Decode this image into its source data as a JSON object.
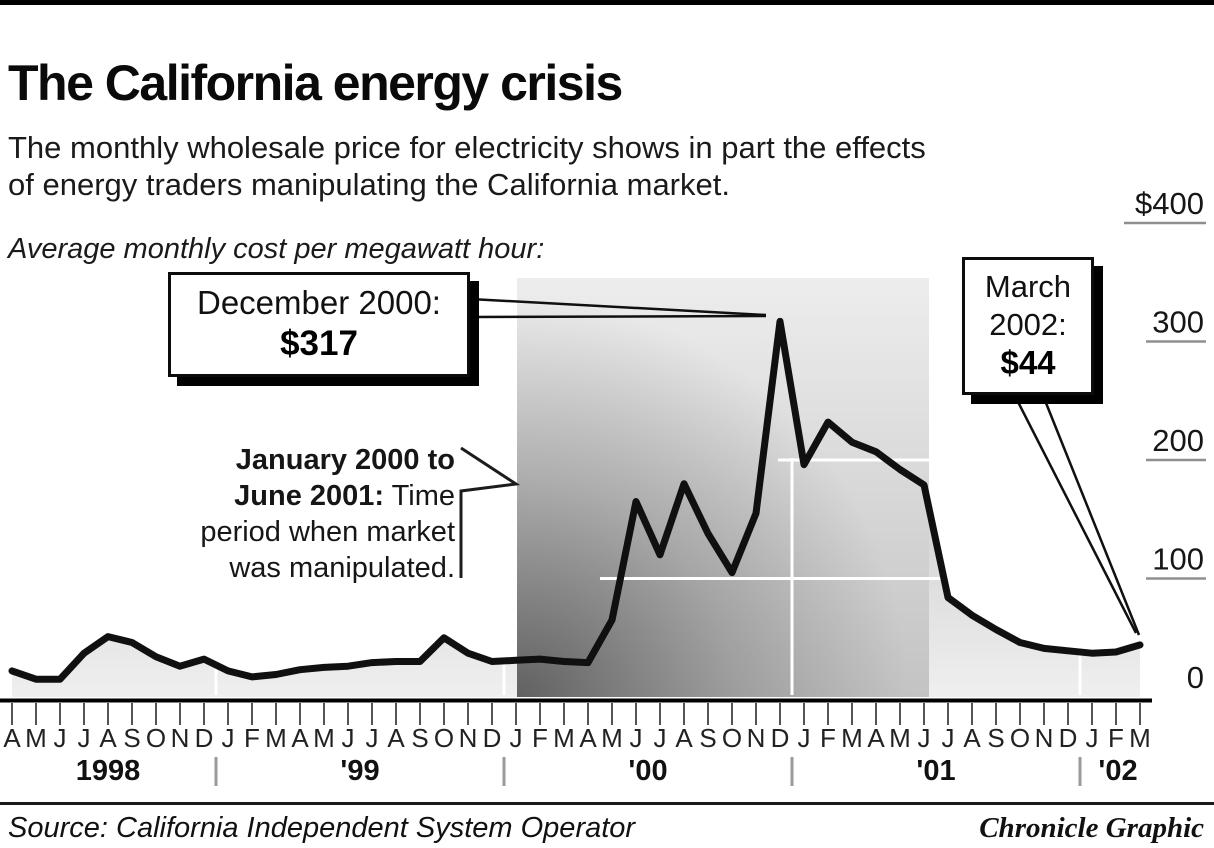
{
  "page": {
    "title": "The California energy crisis",
    "subtitle": "The monthly wholesale price for electricity shows in part the effects\nof energy traders manipulating the California market.",
    "axis_note": "Average monthly cost per megawatt hour:",
    "source": "Source: California Independent System Operator",
    "credit": "Chronicle Graphic"
  },
  "chart_data": {
    "type": "line",
    "title": "Average monthly cost per megawatt hour",
    "unit": "dollars per megawatt hour",
    "x_start": "April 1998",
    "x_end": "March 2002",
    "x_months": [
      "A",
      "M",
      "J",
      "J",
      "A",
      "S",
      "O",
      "N",
      "D",
      "J",
      "F",
      "M",
      "A",
      "M",
      "J",
      "J",
      "A",
      "S",
      "O",
      "N",
      "D",
      "J",
      "F",
      "M",
      "A",
      "M",
      "J",
      "J",
      "A",
      "S",
      "O",
      "N",
      "D",
      "J",
      "F",
      "M",
      "A",
      "M",
      "J",
      "J",
      "A",
      "S",
      "O",
      "N",
      "D",
      "J",
      "F",
      "M"
    ],
    "year_labels": [
      "1998",
      "'99",
      "'00",
      "'01",
      "'02"
    ],
    "values": [
      22,
      15,
      15,
      37,
      51,
      46,
      34,
      26,
      32,
      22,
      17,
      19,
      23,
      25,
      26,
      29,
      30,
      30,
      50,
      37,
      30,
      31,
      32,
      30,
      29,
      65,
      165,
      120,
      180,
      138,
      105,
      155,
      317,
      196,
      232,
      215,
      207,
      192,
      179,
      84,
      69,
      57,
      46,
      41,
      39,
      37,
      38,
      44
    ],
    "ylim": [
      0,
      400
    ],
    "ytick_labels": [
      "$400",
      "300",
      "200",
      "100",
      "0"
    ],
    "ytick_values": [
      400,
      300,
      200,
      100,
      0
    ],
    "grid": "partial-white-on-fill",
    "legend": "none",
    "annotations": {
      "dec2000": {
        "label": "December 2000:",
        "value": "$317",
        "month": "December 2000",
        "price": 317
      },
      "mar2002": {
        "label": "March\n2002:",
        "value": "$44",
        "month": "March 2002",
        "price": 44
      },
      "manipulation": {
        "bold": "January 2000 to\nJune 2001:",
        "rest": " Time\nperiod when market\nwas manipulated.",
        "start_month_index": 21,
        "end_month_index": 38
      }
    },
    "colors": {
      "line": "#101010",
      "under_fill_top": "#b9b9b9",
      "under_fill_mid": "#d6d6d6",
      "under_fill_bottom": "#efefef",
      "band_top": "#ededed",
      "band_mid": "#d8d8d8",
      "band_bottom": "#c3c3c3",
      "band_corner_shade": "rgba(0,0,0,0.5)",
      "gridline": "#ffffff",
      "axis": "#000000",
      "tick": "#555555",
      "year_divider": "#9a9a9a",
      "label_underline": "#8f8f8f"
    }
  }
}
